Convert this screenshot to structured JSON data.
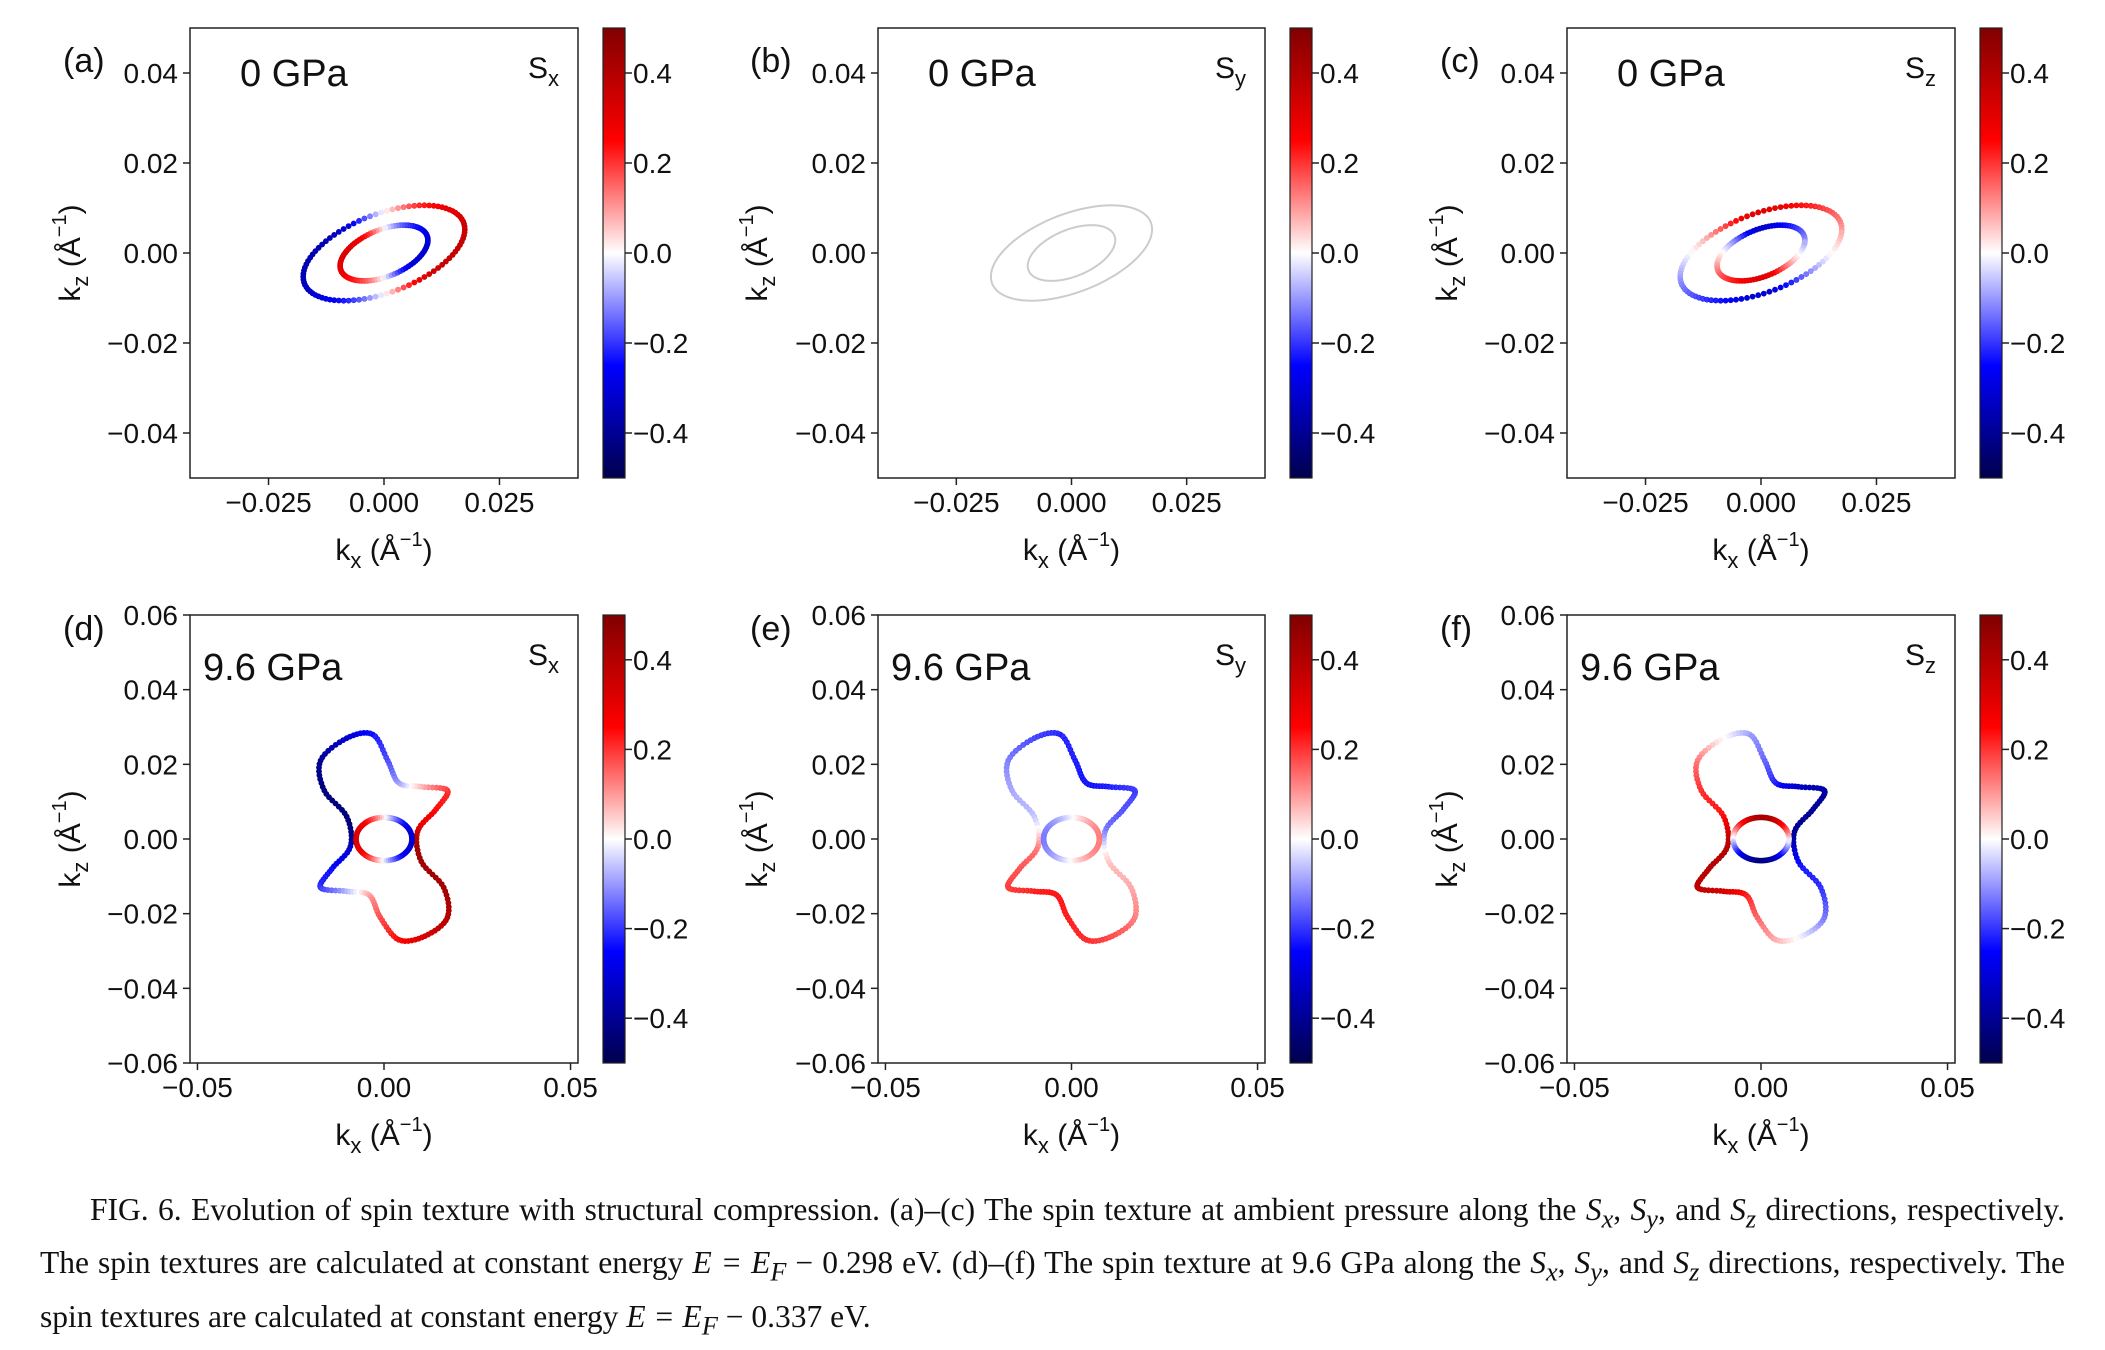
{
  "figure": {
    "colorbar": {
      "ticks": [
        "0.4",
        "0.2",
        "0.0",
        "−0.2",
        "−0.4"
      ],
      "tick_values": [
        0.4,
        0.2,
        0.0,
        -0.2,
        -0.4
      ],
      "range": [
        -0.5,
        0.5
      ],
      "colormap": "seismic",
      "colors": {
        "neg_end": "#00004c",
        "neg": "#0000ff",
        "mid": "#ffffff",
        "pos": "#ff0000",
        "pos_end": "#800000"
      }
    },
    "axis_labels": {
      "x": "kₓ (Å⁻¹)",
      "y": "k_z (Å⁻¹)"
    },
    "neutral_color": "#cccccc"
  },
  "chart_data": [
    {
      "panel": "(a)",
      "type": "scatter",
      "pressure": "0 GPa",
      "component": "Sx",
      "shape": "ellipse",
      "xlim": [
        -0.042,
        0.042
      ],
      "ylim": [
        -0.05,
        0.05
      ],
      "xticks": [
        "−0.025",
        "0.000",
        "0.025"
      ],
      "xtick_values": [
        -0.025,
        0.0,
        0.025
      ],
      "yticks": [
        "0.04",
        "0.02",
        "0.00",
        "−0.02",
        "−0.04"
      ],
      "ytick_values": [
        0.04,
        0.02,
        0.0,
        -0.02,
        -0.04
      ],
      "contours": [
        {
          "name": "outer",
          "rx": 0.0175,
          "ry": 0.0092,
          "slope": 0.3,
          "spin": "cos",
          "amp": 0.35,
          "phase": 0
        },
        {
          "name": "inner",
          "rx": 0.0095,
          "ry": 0.0055,
          "slope": 0.3,
          "spin": "cos",
          "amp": -0.3,
          "phase": 0
        }
      ]
    },
    {
      "panel": "(b)",
      "type": "scatter",
      "pressure": "0 GPa",
      "component": "Sy",
      "shape": "ellipse",
      "xlim": [
        -0.042,
        0.042
      ],
      "ylim": [
        -0.05,
        0.05
      ],
      "xticks": [
        "−0.025",
        "0.000",
        "0.025"
      ],
      "xtick_values": [
        -0.025,
        0.0,
        0.025
      ],
      "yticks": [
        "0.04",
        "0.02",
        "0.00",
        "−0.02",
        "−0.04"
      ],
      "ytick_values": [
        0.04,
        0.02,
        0.0,
        -0.02,
        -0.04
      ],
      "contours": [
        {
          "name": "outer",
          "rx": 0.0175,
          "ry": 0.0092,
          "slope": 0.3,
          "spin": "zero",
          "amp": 0,
          "phase": 0
        },
        {
          "name": "inner",
          "rx": 0.0095,
          "ry": 0.0055,
          "slope": 0.3,
          "spin": "zero",
          "amp": 0,
          "phase": 0
        }
      ]
    },
    {
      "panel": "(c)",
      "type": "scatter",
      "pressure": "0 GPa",
      "component": "Sz",
      "shape": "ellipse",
      "xlim": [
        -0.042,
        0.042
      ],
      "ylim": [
        -0.05,
        0.05
      ],
      "xticks": [
        "−0.025",
        "0.000",
        "0.025"
      ],
      "xtick_values": [
        -0.025,
        0.0,
        0.025
      ],
      "yticks": [
        "0.04",
        "0.02",
        "0.00",
        "−0.02",
        "−0.04"
      ],
      "ytick_values": [
        0.04,
        0.02,
        0.0,
        -0.02,
        -0.04
      ],
      "contours": [
        {
          "name": "outer",
          "rx": 0.0175,
          "ry": 0.0092,
          "slope": 0.3,
          "spin": "sin",
          "amp": 0.3,
          "phase": 0
        },
        {
          "name": "inner",
          "rx": 0.0095,
          "ry": 0.0055,
          "slope": 0.3,
          "spin": "sin",
          "amp": -0.3,
          "phase": 0
        }
      ]
    },
    {
      "panel": "(d)",
      "type": "scatter",
      "pressure": "9.6 GPa",
      "component": "Sx",
      "shape": "spline",
      "xlim": [
        -0.052,
        0.052
      ],
      "ylim": [
        -0.06,
        0.06
      ],
      "xticks": [
        "−0.05",
        "0.00",
        "0.05"
      ],
      "xtick_values": [
        -0.05,
        0.0,
        0.05
      ],
      "yticks": [
        "0.06",
        "0.04",
        "0.02",
        "0.00",
        "−0.02",
        "−0.04",
        "−0.06"
      ],
      "ytick_values": [
        0.06,
        0.04,
        0.02,
        0.0,
        -0.02,
        -0.04,
        -0.06
      ],
      "contours": [
        {
          "name": "outer",
          "points": [
            [
              -0.003,
              0.028
            ],
            [
              -0.01,
              0.027
            ],
            [
              -0.017,
              0.021
            ],
            [
              -0.016,
              0.013
            ],
            [
              -0.01,
              0.006
            ],
            [
              -0.009,
              -0.002
            ],
            [
              -0.014,
              -0.008
            ],
            [
              -0.017,
              -0.013
            ],
            [
              -0.01,
              -0.014
            ],
            [
              -0.004,
              -0.015
            ],
            [
              -0.001,
              -0.021
            ],
            [
              0.004,
              -0.027
            ],
            [
              0.011,
              -0.026
            ],
            [
              0.017,
              -0.021
            ],
            [
              0.016,
              -0.013
            ],
            [
              0.01,
              -0.006
            ],
            [
              0.009,
              0.002
            ],
            [
              0.014,
              0.008
            ],
            [
              0.017,
              0.013
            ],
            [
              0.01,
              0.014
            ],
            [
              0.004,
              0.015
            ],
            [
              0.001,
              0.021
            ]
          ],
          "spin": "cos",
          "amp": 0.42,
          "phase": 0.45
        },
        {
          "name": "inner",
          "rx": 0.0075,
          "ry": 0.0058,
          "slope": 0,
          "spin": "cos",
          "amp": -0.3,
          "phase": 0
        }
      ]
    },
    {
      "panel": "(e)",
      "type": "scatter",
      "pressure": "9.6 GPa",
      "component": "Sy",
      "shape": "spline",
      "xlim": [
        -0.052,
        0.052
      ],
      "ylim": [
        -0.06,
        0.06
      ],
      "xticks": [
        "−0.05",
        "0.00",
        "0.05"
      ],
      "xtick_values": [
        -0.05,
        0.0,
        0.05
      ],
      "yticks": [
        "0.06",
        "0.04",
        "0.02",
        "0.00",
        "−0.02",
        "−0.04",
        "−0.06"
      ],
      "ytick_values": [
        0.06,
        0.04,
        0.02,
        0.0,
        -0.02,
        -0.04,
        -0.06
      ],
      "contours": [
        {
          "name": "outer",
          "points": [
            [
              -0.003,
              0.028
            ],
            [
              -0.01,
              0.027
            ],
            [
              -0.017,
              0.021
            ],
            [
              -0.016,
              0.013
            ],
            [
              -0.01,
              0.006
            ],
            [
              -0.009,
              -0.002
            ],
            [
              -0.014,
              -0.008
            ],
            [
              -0.017,
              -0.013
            ],
            [
              -0.01,
              -0.014
            ],
            [
              -0.004,
              -0.015
            ],
            [
              -0.001,
              -0.021
            ],
            [
              0.004,
              -0.027
            ],
            [
              0.011,
              -0.026
            ],
            [
              0.017,
              -0.021
            ],
            [
              0.016,
              -0.013
            ],
            [
              0.01,
              -0.006
            ],
            [
              0.009,
              0.002
            ],
            [
              0.014,
              0.008
            ],
            [
              0.017,
              0.013
            ],
            [
              0.01,
              0.014
            ],
            [
              0.004,
              0.015
            ],
            [
              0.001,
              0.021
            ]
          ],
          "spin": "sin",
          "amp": -0.22,
          "phase": 0.3
        },
        {
          "name": "inner",
          "rx": 0.0075,
          "ry": 0.0058,
          "slope": 0,
          "spin": "cos",
          "amp": 0.12,
          "phase": 0
        }
      ]
    },
    {
      "panel": "(f)",
      "type": "scatter",
      "pressure": "9.6 GPa",
      "component": "Sz",
      "shape": "spline",
      "xlim": [
        -0.052,
        0.052
      ],
      "ylim": [
        -0.06,
        0.06
      ],
      "xticks": [
        "−0.05",
        "0.00",
        "0.05"
      ],
      "xtick_values": [
        -0.05,
        0.0,
        0.05
      ],
      "yticks": [
        "0.06",
        "0.04",
        "0.02",
        "0.00",
        "−0.02",
        "−0.04",
        "−0.06"
      ],
      "ytick_values": [
        0.06,
        0.04,
        0.02,
        0.0,
        -0.02,
        -0.04,
        -0.06
      ],
      "contours": [
        {
          "name": "outer",
          "points": [
            [
              -0.003,
              0.028
            ],
            [
              -0.01,
              0.027
            ],
            [
              -0.017,
              0.021
            ],
            [
              -0.016,
              0.013
            ],
            [
              -0.01,
              0.006
            ],
            [
              -0.009,
              -0.002
            ],
            [
              -0.014,
              -0.008
            ],
            [
              -0.017,
              -0.013
            ],
            [
              -0.01,
              -0.014
            ],
            [
              -0.004,
              -0.015
            ],
            [
              -0.001,
              -0.021
            ],
            [
              0.004,
              -0.027
            ],
            [
              0.011,
              -0.026
            ],
            [
              0.017,
              -0.021
            ],
            [
              0.016,
              -0.013
            ],
            [
              0.01,
              -0.006
            ],
            [
              0.009,
              0.002
            ],
            [
              0.014,
              0.008
            ],
            [
              0.017,
              0.013
            ],
            [
              0.01,
              0.014
            ],
            [
              0.004,
              0.015
            ],
            [
              0.001,
              0.021
            ]
          ],
          "spin": "cos",
          "amp": -0.38,
          "phase": -0.35
        },
        {
          "name": "inner",
          "rx": 0.0075,
          "ry": 0.0058,
          "slope": 0,
          "spin": "sin",
          "amp": 0.4,
          "phase": 0
        }
      ]
    }
  ],
  "caption": {
    "fig_label": "FIG. 6.",
    "seg1": "Evolution of spin texture with structural compression. (a)–(c) The spin texture at ambient pressure along the ",
    "s_x": "S",
    "sub_x": "x",
    "sep1": ", ",
    "s_y": "S",
    "sub_y": "y",
    "sep2": ", and ",
    "s_z": "S",
    "sub_z": "z",
    "seg2": " directions, respectively. The spin textures are calculated at constant energy ",
    "eq1": "E = E",
    "eq1_sub": "F",
    "eq1_rest": " − 0.298 eV. (d)–(f) The spin texture at 9.6 GPa along the ",
    "s_x2": "S",
    "sub_x2": "x",
    "sep3": ", ",
    "s_y2": "S",
    "sub_y2": "y",
    "sep4": ", and ",
    "s_z2": "S",
    "sub_z2": "z",
    "seg3": " directions, respectively. The spin textures are calculated at constant energy ",
    "eq2": "E = E",
    "eq2_sub": "F",
    "eq2_rest": " − 0.337 eV."
  }
}
